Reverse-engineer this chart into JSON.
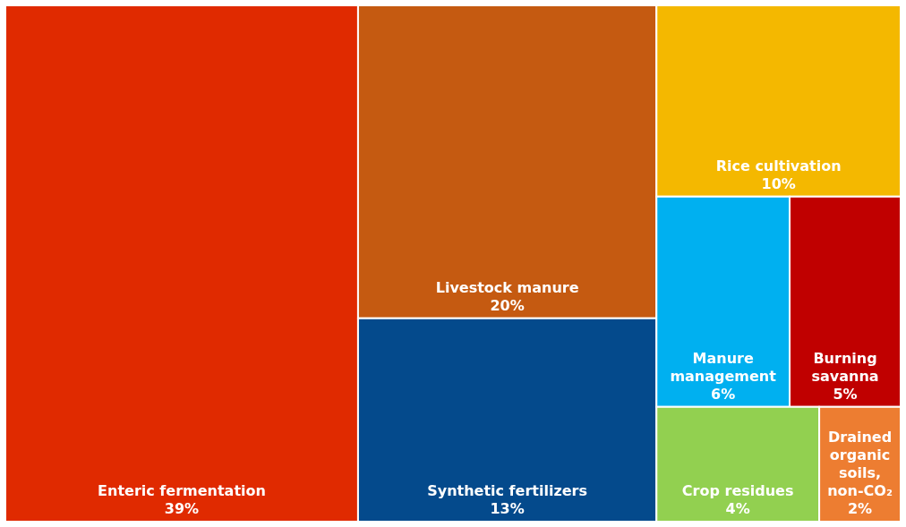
{
  "chart_data": {
    "type": "other",
    "categories": [
      "Enteric fermentation",
      "Livestock manure",
      "Synthetic fertilizers",
      "Rice cultivation",
      "Manure management",
      "Burning savanna",
      "Crop residues",
      "Drained organic soils, non-CO₂"
    ],
    "values": [
      39,
      20,
      13,
      10,
      6,
      5,
      4,
      2
    ],
    "value_labels": [
      "39%",
      "20%",
      "13%",
      "10%",
      "6%",
      "5%",
      "4%",
      "2%"
    ],
    "colors": [
      "#e02a00",
      "#c55a11",
      "#044a8c",
      "#f4b800",
      "#00b0f0",
      "#c00000",
      "#92d050",
      "#ed7d31"
    ]
  }
}
